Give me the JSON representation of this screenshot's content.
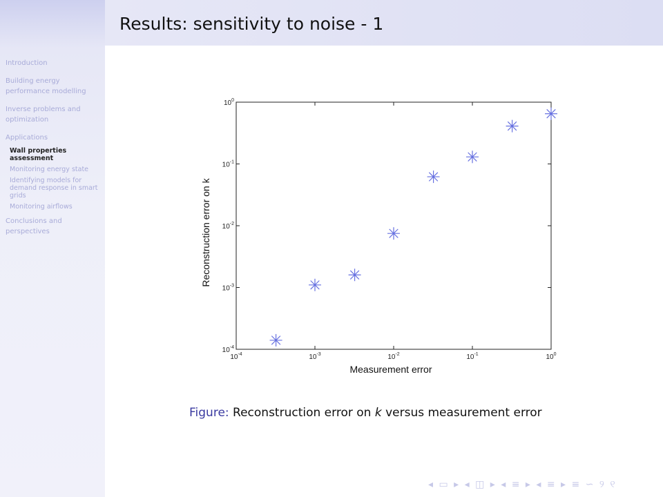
{
  "slide": {
    "title": "Results: sensitivity to noise - 1"
  },
  "sidebar": {
    "sections": [
      {
        "label": "Introduction",
        "subitems": []
      },
      {
        "label": "Building energy performance modelling",
        "subitems": []
      },
      {
        "label": "Inverse problems and optimization",
        "subitems": []
      },
      {
        "label": "Applications",
        "subitems": [
          {
            "label": "Wall properties assessment",
            "active": true
          },
          {
            "label": "Monitoring energy state",
            "active": false
          },
          {
            "label": "Identifying models for demand response in smart grids",
            "active": false
          },
          {
            "label": "Monitoring airflows",
            "active": false
          }
        ]
      },
      {
        "label": "Conclusions and perspectives",
        "subitems": []
      }
    ]
  },
  "figure": {
    "caption_label": "Figure:",
    "caption_text_before": "Reconstruction error on ",
    "caption_symbol": "k",
    "caption_text_after": " versus measurement error"
  },
  "chart_data": {
    "type": "scatter",
    "xscale": "log",
    "yscale": "log",
    "xlabel": "Measurement error",
    "ylabel": "Reconstruction error on k",
    "xlim": [
      0.0001,
      1
    ],
    "ylim": [
      0.0001,
      1
    ],
    "xticks": [
      {
        "value": 0.0001,
        "base": "10",
        "exp": "-4"
      },
      {
        "value": 0.001,
        "base": "10",
        "exp": "-3"
      },
      {
        "value": 0.01,
        "base": "10",
        "exp": "-2"
      },
      {
        "value": 0.1,
        "base": "10",
        "exp": "-1"
      },
      {
        "value": 1,
        "base": "10",
        "exp": "0"
      }
    ],
    "yticks": [
      {
        "value": 0.0001,
        "base": "10",
        "exp": "-4"
      },
      {
        "value": 0.001,
        "base": "10",
        "exp": "-3"
      },
      {
        "value": 0.01,
        "base": "10",
        "exp": "-2"
      },
      {
        "value": 0.1,
        "base": "10",
        "exp": "-1"
      },
      {
        "value": 1,
        "base": "10",
        "exp": "0"
      }
    ],
    "marker": "asterisk",
    "color": "#6670e0",
    "series": [
      {
        "points": [
          {
            "x": 0.00032,
            "y": 0.00014
          },
          {
            "x": 0.001,
            "y": 0.0011
          },
          {
            "x": 0.0032,
            "y": 0.0016
          },
          {
            "x": 0.01,
            "y": 0.0075
          },
          {
            "x": 0.032,
            "y": 0.062
          },
          {
            "x": 0.1,
            "y": 0.13
          },
          {
            "x": 0.32,
            "y": 0.41
          },
          {
            "x": 1,
            "y": 0.65
          }
        ]
      }
    ]
  },
  "footer": {
    "nav_symbols": "◂ ▭ ▸ ◂ ◫ ▸ ◂ ≡ ▸ ◂ ≡ ▸ ≡ ∽ ୨ ୧"
  }
}
